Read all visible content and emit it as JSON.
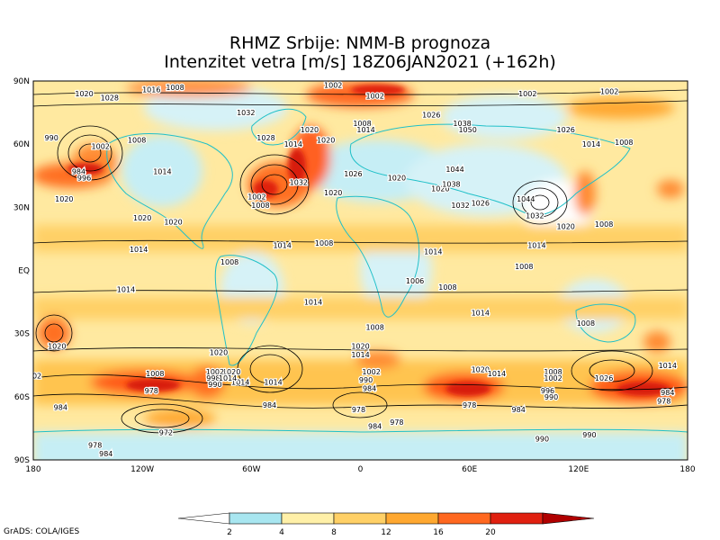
{
  "title_line1": "RHMZ Srbije: NMM-B prognoza",
  "title_line2": "Intenzitet vetra [m/s] 18Z06JAN2021 (+162h)",
  "credit": "GrADS: COLA/IGES",
  "lat_labels": [
    {
      "text": "90N",
      "lat": 90
    },
    {
      "text": "60N",
      "lat": 60
    },
    {
      "text": "30N",
      "lat": 30
    },
    {
      "text": "EQ",
      "lat": 0
    },
    {
      "text": "30S",
      "lat": -30
    },
    {
      "text": "60S",
      "lat": -60
    },
    {
      "text": "90S",
      "lat": -90
    }
  ],
  "lon_labels": [
    {
      "text": "180",
      "lon": -180
    },
    {
      "text": "120W",
      "lon": -120
    },
    {
      "text": "60W",
      "lon": -60
    },
    {
      "text": "0",
      "lon": 0
    },
    {
      "text": "60E",
      "lon": 60
    },
    {
      "text": "120E",
      "lon": 120
    },
    {
      "text": "180",
      "lon": 180
    }
  ],
  "colorbar": {
    "ticks": [
      "2",
      "4",
      "8",
      "12",
      "16",
      "20"
    ],
    "colors": [
      "#ffffff",
      "#a8e6f0",
      "#fff0a8",
      "#ffd066",
      "#ffa830",
      "#ff6820",
      "#e02010",
      "#b00000"
    ]
  },
  "pressure_labels": [
    {
      "text": "1020",
      "lon": -152,
      "lat": 84
    },
    {
      "text": "1028",
      "lon": -138,
      "lat": 82
    },
    {
      "text": "1016",
      "lon": -115,
      "lat": 86
    },
    {
      "text": "1008",
      "lon": -102,
      "lat": 87
    },
    {
      "text": "1002",
      "lon": -15,
      "lat": 88
    },
    {
      "text": "1002",
      "lon": 8,
      "lat": 83
    },
    {
      "text": "1032",
      "lon": -63,
      "lat": 75
    },
    {
      "text": "1028",
      "lon": -52,
      "lat": 63
    },
    {
      "text": "1020",
      "lon": -28,
      "lat": 67
    },
    {
      "text": "1020",
      "lon": -19,
      "lat": 62
    },
    {
      "text": "1014",
      "lon": -37,
      "lat": 60
    },
    {
      "text": "1008",
      "lon": 1,
      "lat": 70
    },
    {
      "text": "1014",
      "lon": 3,
      "lat": 67
    },
    {
      "text": "1026",
      "lon": 39,
      "lat": 74
    },
    {
      "text": "1050",
      "lon": 59,
      "lat": 67
    },
    {
      "text": "1038",
      "lon": 56,
      "lat": 70
    },
    {
      "text": "1026",
      "lon": 113,
      "lat": 67
    },
    {
      "text": "1002",
      "lon": 92,
      "lat": 84
    },
    {
      "text": "1002",
      "lon": 137,
      "lat": 85
    },
    {
      "text": "1014",
      "lon": 127,
      "lat": 60
    },
    {
      "text": "1008",
      "lon": 145,
      "lat": 61
    },
    {
      "text": "990",
      "lon": -170,
      "lat": 63
    },
    {
      "text": "1002",
      "lon": -143,
      "lat": 59
    },
    {
      "text": "1008",
      "lon": -123,
      "lat": 62
    },
    {
      "text": "1014",
      "lon": -109,
      "lat": 47
    },
    {
      "text": "984",
      "lon": -155,
      "lat": 47
    },
    {
      "text": "996",
      "lon": -152,
      "lat": 44
    },
    {
      "text": "1020",
      "lon": -163,
      "lat": 34
    },
    {
      "text": "1020",
      "lon": -120,
      "lat": 25
    },
    {
      "text": "1020",
      "lon": -103,
      "lat": 23
    },
    {
      "text": "1002",
      "lon": -57,
      "lat": 35
    },
    {
      "text": "1008",
      "lon": -55,
      "lat": 31
    },
    {
      "text": "1032",
      "lon": -34,
      "lat": 42
    },
    {
      "text": "1026",
      "lon": -4,
      "lat": 46
    },
    {
      "text": "1020",
      "lon": -15,
      "lat": 37
    },
    {
      "text": "1020",
      "lon": 20,
      "lat": 44
    },
    {
      "text": "1020",
      "lon": 44,
      "lat": 39
    },
    {
      "text": "1044",
      "lon": 52,
      "lat": 48
    },
    {
      "text": "1038",
      "lon": 50,
      "lat": 41
    },
    {
      "text": "1032",
      "lon": 55,
      "lat": 31
    },
    {
      "text": "1026",
      "lon": 66,
      "lat": 32
    },
    {
      "text": "1044",
      "lon": 91,
      "lat": 34
    },
    {
      "text": "1032",
      "lon": 96,
      "lat": 26
    },
    {
      "text": "1020",
      "lon": 113,
      "lat": 21
    },
    {
      "text": "1008",
      "lon": 134,
      "lat": 22
    },
    {
      "text": "1014",
      "lon": -122,
      "lat": 10
    },
    {
      "text": "1014",
      "lon": -43,
      "lat": 12
    },
    {
      "text": "1008",
      "lon": -20,
      "lat": 13
    },
    {
      "text": "1014",
      "lon": 40,
      "lat": 9
    },
    {
      "text": "1014",
      "lon": 97,
      "lat": 12
    },
    {
      "text": "1008",
      "lon": -72,
      "lat": 4
    },
    {
      "text": "1008",
      "lon": 90,
      "lat": 2
    },
    {
      "text": "1006",
      "lon": 30,
      "lat": -5
    },
    {
      "text": "1008",
      "lon": 48,
      "lat": -8
    },
    {
      "text": "1014",
      "lon": -129,
      "lat": -9
    },
    {
      "text": "1014",
      "lon": -26,
      "lat": -15
    },
    {
      "text": "1014",
      "lon": 66,
      "lat": -20
    },
    {
      "text": "1008",
      "lon": 8,
      "lat": -27
    },
    {
      "text": "1008",
      "lon": 124,
      "lat": -25
    },
    {
      "text": "1020",
      "lon": -167,
      "lat": -36
    },
    {
      "text": "1020",
      "lon": -78,
      "lat": -39
    },
    {
      "text": "1020",
      "lon": 0,
      "lat": -36
    },
    {
      "text": "1014",
      "lon": 0,
      "lat": -40
    },
    {
      "text": "1020",
      "lon": -71,
      "lat": -48
    },
    {
      "text": "1014",
      "lon": -66,
      "lat": -53
    },
    {
      "text": "1008",
      "lon": -113,
      "lat": -49
    },
    {
      "text": "1002",
      "lon": -80,
      "lat": -48
    },
    {
      "text": "998",
      "lon": -81,
      "lat": -51
    },
    {
      "text": "990",
      "lon": -80,
      "lat": -54
    },
    {
      "text": "1014",
      "lon": -73,
      "lat": -51
    },
    {
      "text": "1014",
      "lon": -48,
      "lat": -53
    },
    {
      "text": "1002",
      "lon": 6,
      "lat": -48
    },
    {
      "text": "990",
      "lon": 3,
      "lat": -52
    },
    {
      "text": "984",
      "lon": 5,
      "lat": -56
    },
    {
      "text": "984",
      "lon": -50,
      "lat": -64
    },
    {
      "text": "978",
      "lon": -115,
      "lat": -57
    },
    {
      "text": "984",
      "lon": -165,
      "lat": -65
    },
    {
      "text": "978",
      "lon": -1,
      "lat": -66
    },
    {
      "text": "972",
      "lon": -107,
      "lat": -77
    },
    {
      "text": "978",
      "lon": 20,
      "lat": -72
    },
    {
      "text": "984",
      "lon": 8,
      "lat": -74
    },
    {
      "text": "1020",
      "lon": 66,
      "lat": -47
    },
    {
      "text": "1014",
      "lon": 75,
      "lat": -49
    },
    {
      "text": "1008",
      "lon": 106,
      "lat": -48
    },
    {
      "text": "1002",
      "lon": 106,
      "lat": -51
    },
    {
      "text": "996",
      "lon": 103,
      "lat": -57
    },
    {
      "text": "990",
      "lon": 105,
      "lat": -60
    },
    {
      "text": "978",
      "lon": 60,
      "lat": -64
    },
    {
      "text": "984",
      "lon": 87,
      "lat": -66
    },
    {
      "text": "1026",
      "lon": 134,
      "lat": -51
    },
    {
      "text": "1014",
      "lon": 169,
      "lat": -45
    },
    {
      "text": "984",
      "lon": 169,
      "lat": -58
    },
    {
      "text": "978",
      "lon": 167,
      "lat": -62
    },
    {
      "text": "990",
      "lon": 100,
      "lat": -80
    },
    {
      "text": "990",
      "lon": 126,
      "lat": -78
    },
    {
      "text": "978",
      "lon": -146,
      "lat": -83
    },
    {
      "text": "984",
      "lon": -140,
      "lat": -87
    },
    {
      "text": "02",
      "lon": -178,
      "lat": -50
    }
  ]
}
